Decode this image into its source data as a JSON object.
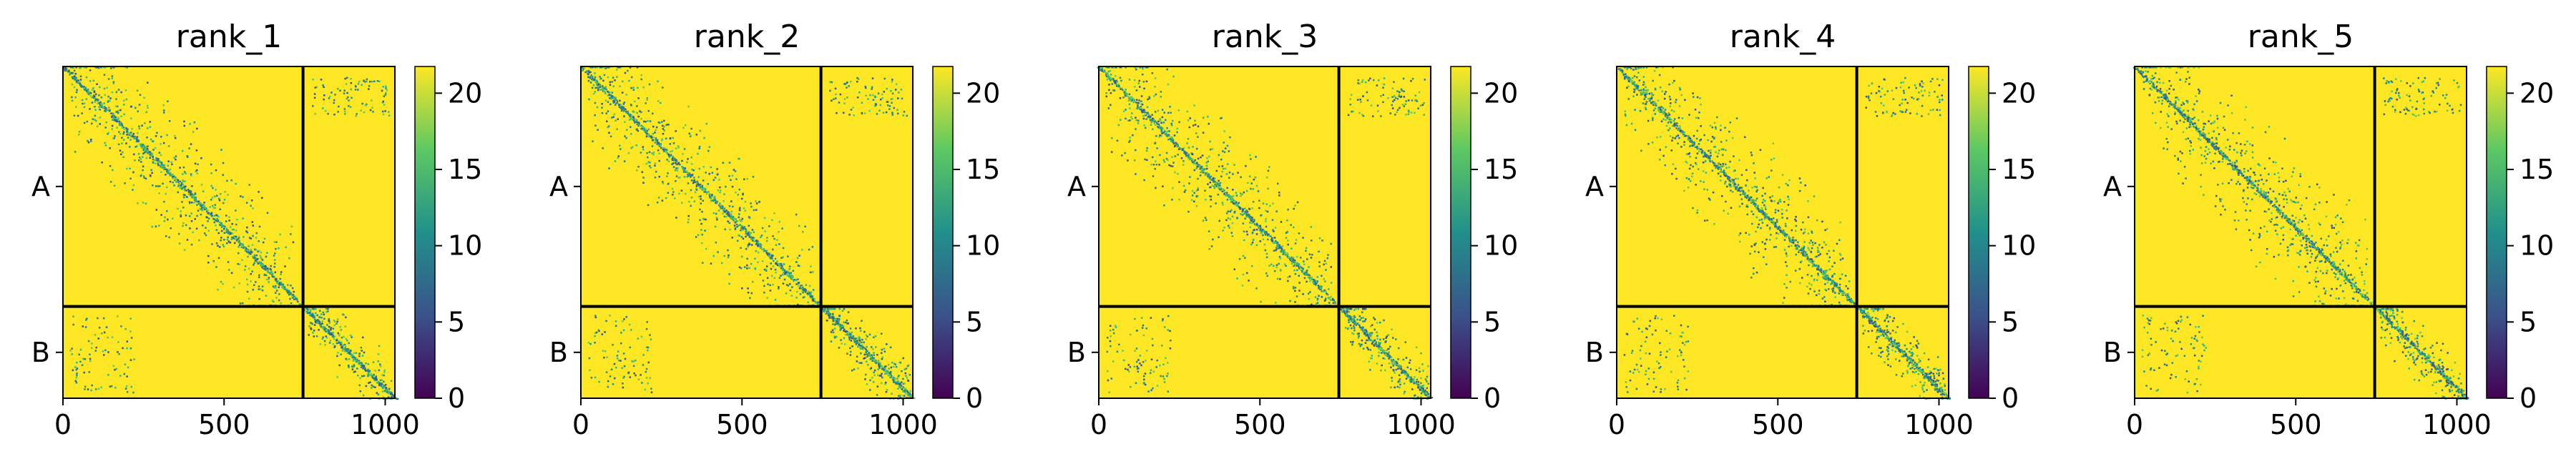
{
  "chart_data": [
    {
      "type": "heatmap",
      "title": "rank_1",
      "xticks": [
        0,
        500,
        1000
      ],
      "xlim": [
        0,
        1030
      ],
      "chain_labels": [
        "A",
        "B"
      ],
      "chain_boundary": 745,
      "colorbar": {
        "ticks": [
          0,
          5,
          10,
          15,
          20
        ],
        "range": [
          0,
          21.75
        ]
      },
      "colormap": [
        "#440154",
        "#3b528b",
        "#21908c",
        "#5dc863",
        "#fde725"
      ]
    },
    {
      "type": "heatmap",
      "title": "rank_2",
      "xticks": [
        0,
        500,
        1000
      ],
      "xlim": [
        0,
        1030
      ],
      "chain_labels": [
        "A",
        "B"
      ],
      "chain_boundary": 745,
      "colorbar": {
        "ticks": [
          0,
          5,
          10,
          15,
          20
        ],
        "range": [
          0,
          21.75
        ]
      },
      "colormap": [
        "#440154",
        "#3b528b",
        "#21908c",
        "#5dc863",
        "#fde725"
      ]
    },
    {
      "type": "heatmap",
      "title": "rank_3",
      "xticks": [
        0,
        500,
        1000
      ],
      "xlim": [
        0,
        1030
      ],
      "chain_labels": [
        "A",
        "B"
      ],
      "chain_boundary": 745,
      "colorbar": {
        "ticks": [
          0,
          5,
          10,
          15,
          20
        ],
        "range": [
          0,
          21.75
        ]
      },
      "colormap": [
        "#440154",
        "#3b528b",
        "#21908c",
        "#5dc863",
        "#fde725"
      ]
    },
    {
      "type": "heatmap",
      "title": "rank_4",
      "xticks": [
        0,
        500,
        1000
      ],
      "xlim": [
        0,
        1030
      ],
      "chain_labels": [
        "A",
        "B"
      ],
      "chain_boundary": 745,
      "colorbar": {
        "ticks": [
          0,
          5,
          10,
          15,
          20
        ],
        "range": [
          0,
          21.75
        ]
      },
      "colormap": [
        "#440154",
        "#3b528b",
        "#21908c",
        "#5dc863",
        "#fde725"
      ]
    },
    {
      "type": "heatmap",
      "title": "rank_5",
      "xticks": [
        0,
        500,
        1000
      ],
      "xlim": [
        0,
        1030
      ],
      "chain_labels": [
        "A",
        "B"
      ],
      "chain_boundary": 745,
      "colorbar": {
        "ticks": [
          0,
          5,
          10,
          15,
          20
        ],
        "range": [
          0,
          21.75
        ]
      },
      "colormap": [
        "#440154",
        "#3b528b",
        "#21908c",
        "#5dc863",
        "#fde725"
      ]
    }
  ]
}
